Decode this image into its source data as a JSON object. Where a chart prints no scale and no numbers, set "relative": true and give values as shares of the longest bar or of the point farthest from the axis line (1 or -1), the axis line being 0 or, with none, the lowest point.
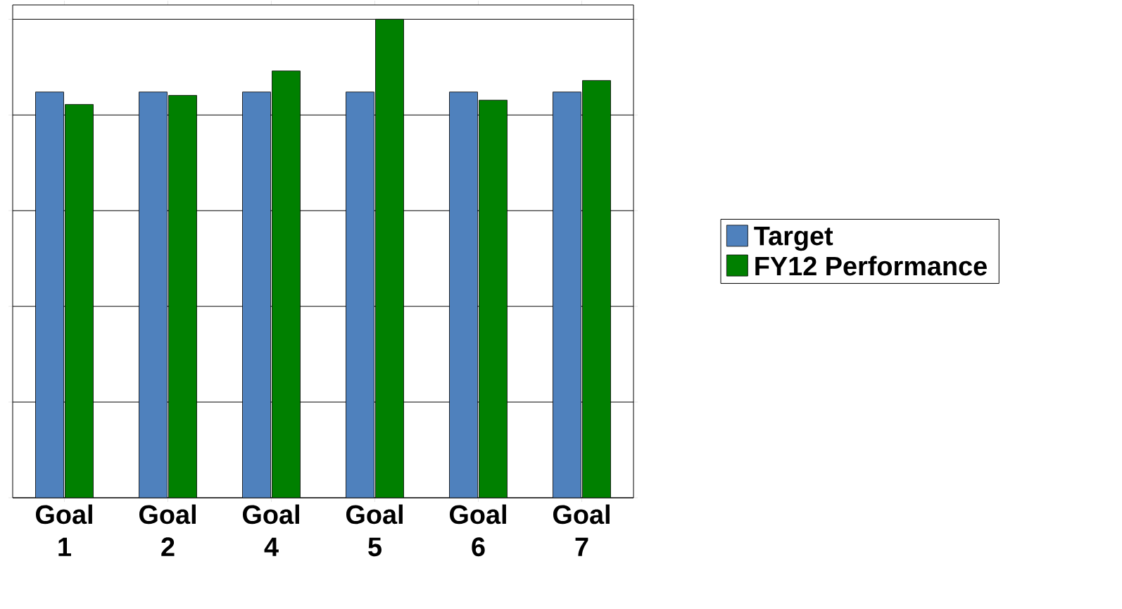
{
  "chart_data": {
    "type": "bar",
    "relative": true,
    "grid": "y",
    "legend": "right",
    "categories": [
      "Goal 1",
      "Goal 2",
      "Goal 4",
      "Goal 5",
      "Goal 6",
      "Goal 7"
    ],
    "series": [
      {
        "name": "Target",
        "color": "#4f81bd",
        "values": [
          0.848,
          0.848,
          0.848,
          0.848,
          0.848,
          0.848
        ]
      },
      {
        "name": "FY12 Performance",
        "color": "#008000",
        "values": [
          0.822,
          0.841,
          0.892,
          1,
          0.831,
          0.872
        ]
      }
    ]
  }
}
